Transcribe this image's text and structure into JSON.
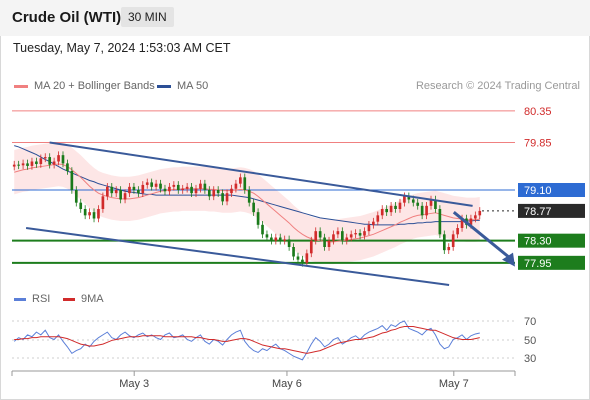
{
  "header": {
    "title": "Crude Oil (WTI)",
    "timeframe": "30 MIN"
  },
  "datetime": "Tuesday, May 7, 2024 1:53:03 AM CET",
  "legend": {
    "ma20_label": "MA 20 + Bollinger Bands",
    "ma50_label": "MA 50",
    "rsi_label": "RSI",
    "rsi_ma_label": "9MA",
    "credit": "Research © 2024 Trading Central"
  },
  "colors": {
    "ma20": "#f08080",
    "ma50": "#2c4f96",
    "band_fill": "#fde3e3",
    "candle_up": "#d12b2b",
    "candle_down": "#1a7a1a",
    "support": "#1d7d1d",
    "resistance": "#f08080",
    "pivot": "#2d6bd3",
    "trendline": "#3a5a9a",
    "last_price": "#2a2a2a",
    "rsi": "#5b7fd8"
  },
  "chart_data": {
    "type": "candlestick",
    "title": "Crude Oil (WTI)",
    "timeframe": "30 MIN",
    "x_ticks": [
      "May 3",
      "May 6",
      "May 7"
    ],
    "y_range": [
      77.6,
      80.6
    ],
    "price_levels": [
      {
        "value": 80.35,
        "label": "80.35",
        "kind": "resistance"
      },
      {
        "value": 79.85,
        "label": "79.85",
        "kind": "resistance"
      },
      {
        "value": 79.1,
        "label": "79.10",
        "kind": "pivot"
      },
      {
        "value": 78.77,
        "label": "78.77",
        "kind": "last"
      },
      {
        "value": 78.3,
        "label": "78.30",
        "kind": "support"
      },
      {
        "value": 77.95,
        "label": "77.95",
        "kind": "support"
      }
    ],
    "series_close": [
      79.5,
      79.49,
      79.52,
      79.48,
      79.55,
      79.51,
      79.6,
      79.62,
      79.5,
      79.55,
      79.65,
      79.52,
      79.4,
      79.1,
      78.9,
      78.8,
      78.7,
      78.75,
      78.65,
      78.8,
      79.0,
      79.15,
      79.05,
      79.1,
      78.95,
      79.05,
      79.15,
      79.1,
      79.05,
      79.18,
      79.22,
      79.15,
      79.2,
      79.12,
      79.08,
      79.15,
      79.18,
      79.1,
      79.12,
      79.15,
      79.05,
      79.12,
      79.2,
      79.1,
      79.0,
      79.1,
      79.05,
      78.92,
      79.05,
      79.12,
      79.2,
      79.3,
      79.1,
      78.9,
      78.75,
      78.55,
      78.4,
      78.35,
      78.3,
      78.35,
      78.3,
      78.32,
      78.2,
      78.05,
      78.0,
      77.95,
      78.1,
      78.3,
      78.45,
      78.35,
      78.2,
      78.3,
      78.4,
      78.45,
      78.3,
      78.35,
      78.4,
      78.42,
      78.38,
      78.45,
      78.55,
      78.6,
      78.7,
      78.8,
      78.75,
      78.85,
      78.8,
      78.9,
      79.0,
      78.95,
      78.9,
      78.85,
      78.7,
      78.85,
      78.95,
      78.8,
      78.4,
      78.15,
      78.2,
      78.4,
      78.5,
      78.65,
      78.55,
      78.65,
      78.7,
      78.77
    ],
    "ma20": [
      79.38,
      79.4,
      79.42,
      79.43,
      79.45,
      79.46,
      79.47,
      79.48,
      79.49,
      79.5,
      79.51,
      79.5,
      79.47,
      79.42,
      79.36,
      79.3,
      79.23,
      79.16,
      79.1,
      79.05,
      79.02,
      79.0,
      78.98,
      78.97,
      78.96,
      78.96,
      78.96,
      78.97,
      78.98,
      79.0,
      79.02,
      79.04,
      79.06,
      79.08,
      79.09,
      79.1,
      79.11,
      79.11,
      79.12,
      79.12,
      79.12,
      79.12,
      79.12,
      79.12,
      79.11,
      79.11,
      79.1,
      79.09,
      79.09,
      79.09,
      79.1,
      79.11,
      79.1,
      79.08,
      79.05,
      79.0,
      78.94,
      78.88,
      78.82,
      78.76,
      78.7,
      78.64,
      78.58,
      78.51,
      78.45,
      78.4,
      78.36,
      78.33,
      78.31,
      78.3,
      78.29,
      78.28,
      78.28,
      78.29,
      78.3,
      78.31,
      78.32,
      78.33,
      78.34,
      78.36,
      78.38,
      78.4,
      78.43,
      78.46,
      78.49,
      78.52,
      78.55,
      78.59,
      78.62,
      78.65,
      78.68,
      78.7,
      78.71,
      78.72,
      78.73,
      78.74,
      78.72,
      78.7,
      78.68,
      78.66,
      78.65,
      78.64,
      78.63,
      78.63,
      78.63,
      78.64
    ],
    "ma50": [
      79.8,
      79.78,
      79.75,
      79.72,
      79.69,
      79.66,
      79.62,
      79.58,
      79.55,
      79.51,
      79.47,
      79.43,
      79.4,
      79.37,
      79.34,
      79.31,
      79.28,
      79.25,
      79.23,
      79.2,
      79.18,
      79.16,
      79.14,
      79.12,
      79.1,
      79.08,
      79.07,
      79.06,
      79.05,
      79.04,
      79.03,
      79.03,
      79.02,
      79.02,
      79.02,
      79.02,
      79.02,
      79.02,
      79.02,
      79.02,
      79.02,
      79.02,
      79.02,
      79.02,
      79.02,
      79.02,
      79.02,
      79.02,
      79.02,
      79.02,
      79.01,
      79.0,
      78.99,
      78.98,
      78.96,
      78.94,
      78.92,
      78.9,
      78.88,
      78.86,
      78.84,
      78.82,
      78.8,
      78.78,
      78.76,
      78.74,
      78.72,
      78.7,
      78.68,
      78.66,
      78.65,
      78.64,
      78.63,
      78.62,
      78.61,
      78.6,
      78.59,
      78.58,
      78.57,
      78.56,
      78.56,
      78.55,
      78.55,
      78.55,
      78.55,
      78.55,
      78.55,
      78.56,
      78.56,
      78.57,
      78.57,
      78.58,
      78.58,
      78.59,
      78.59,
      78.6,
      78.6,
      78.6,
      78.6,
      78.6,
      78.6,
      78.6,
      78.61,
      78.61,
      78.62,
      78.62
    ],
    "bollinger_width": 0.35,
    "trendlines": [
      {
        "name": "upper",
        "start": [
          79.85,
          0.08
        ],
        "end": [
          78.85,
          0.98
        ]
      },
      {
        "name": "lower",
        "start": [
          78.5,
          0.03
        ],
        "end": [
          77.6,
          0.93
        ]
      },
      {
        "name": "forecast",
        "start": [
          78.75,
          0.94
        ],
        "end": [
          78.0,
          1.0
        ]
      }
    ],
    "rsi": {
      "ticks": [
        70,
        50,
        30
      ],
      "range": [
        20,
        80
      ],
      "values": [
        48,
        52,
        50,
        55,
        53,
        58,
        55,
        60,
        52,
        50,
        55,
        48,
        42,
        35,
        38,
        40,
        45,
        42,
        48,
        52,
        55,
        58,
        52,
        50,
        55,
        58,
        54,
        52,
        55,
        57,
        53,
        55,
        52,
        50,
        55,
        57,
        52,
        53,
        55,
        50,
        48,
        52,
        55,
        48,
        45,
        50,
        48,
        44,
        50,
        55,
        58,
        60,
        48,
        42,
        38,
        36,
        40,
        38,
        42,
        45,
        40,
        38,
        35,
        32,
        30,
        28,
        36,
        45,
        52,
        48,
        42,
        45,
        50,
        52,
        45,
        48,
        52,
        54,
        50,
        55,
        58,
        60,
        62,
        65,
        60,
        66,
        64,
        68,
        70,
        62,
        60,
        58,
        55,
        60,
        62,
        55,
        45,
        40,
        42,
        50,
        52,
        55,
        50,
        54,
        56,
        57
      ],
      "ma9": [
        50,
        50,
        51,
        51,
        52,
        52,
        53,
        53,
        53,
        53,
        53,
        52,
        51,
        49,
        47,
        45,
        44,
        43,
        43,
        44,
        45,
        47,
        49,
        50,
        51,
        52,
        53,
        53,
        53,
        54,
        54,
        54,
        54,
        54,
        53,
        53,
        53,
        53,
        53,
        53,
        53,
        52,
        52,
        51,
        50,
        50,
        49,
        48,
        48,
        49,
        50,
        51,
        51,
        50,
        48,
        46,
        44,
        43,
        42,
        41,
        40,
        40,
        39,
        38,
        37,
        36,
        35,
        36,
        37,
        38,
        40,
        42,
        44,
        46,
        47,
        48,
        49,
        50,
        50,
        51,
        52,
        53,
        55,
        57,
        58,
        60,
        61,
        63,
        64,
        64,
        64,
        63,
        62,
        61,
        60,
        60,
        58,
        56,
        54,
        52,
        51,
        50,
        50,
        50,
        51,
        52
      ]
    }
  }
}
